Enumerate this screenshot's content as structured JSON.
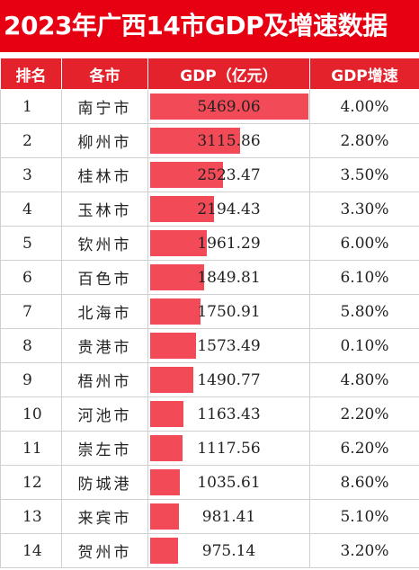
{
  "title": "2023年广西14市GDP及增速数据",
  "headers": {
    "rank": "排名",
    "city": "各市",
    "gdp": "GDP（亿元）",
    "growth": "GDP增速"
  },
  "colors": {
    "accent": "#e60012",
    "bar": "#f24a57"
  },
  "chart_data": {
    "type": "table",
    "title": "2023年广西14市GDP及增速数据",
    "columns": [
      "排名",
      "各市",
      "GDP（亿元）",
      "GDP增速"
    ],
    "rows": [
      {
        "rank": "1",
        "city": "南宁市",
        "gdp": "5469.06",
        "gdp_value": 5469.06,
        "growth": "4.00%"
      },
      {
        "rank": "2",
        "city": "柳州市",
        "gdp": "3115.86",
        "gdp_value": 3115.86,
        "growth": "2.80%"
      },
      {
        "rank": "3",
        "city": "桂林市",
        "gdp": "2523.47",
        "gdp_value": 2523.47,
        "growth": "3.50%"
      },
      {
        "rank": "4",
        "city": "玉林市",
        "gdp": "2194.43",
        "gdp_value": 2194.43,
        "growth": "3.30%"
      },
      {
        "rank": "5",
        "city": "钦州市",
        "gdp": "1961.29",
        "gdp_value": 1961.29,
        "growth": "6.00%"
      },
      {
        "rank": "6",
        "city": "百色市",
        "gdp": "1849.81",
        "gdp_value": 1849.81,
        "growth": "6.10%"
      },
      {
        "rank": "7",
        "city": "北海市",
        "gdp": "1750.91",
        "gdp_value": 1750.91,
        "growth": "5.80%"
      },
      {
        "rank": "8",
        "city": "贵港市",
        "gdp": "1573.49",
        "gdp_value": 1573.49,
        "growth": "0.10%"
      },
      {
        "rank": "9",
        "city": "梧州市",
        "gdp": "1490.77",
        "gdp_value": 1490.77,
        "growth": "4.80%"
      },
      {
        "rank": "10",
        "city": "河池市",
        "gdp": "1163.43",
        "gdp_value": 1163.43,
        "growth": "2.20%"
      },
      {
        "rank": "11",
        "city": "崇左市",
        "gdp": "1117.56",
        "gdp_value": 1117.56,
        "growth": "6.20%"
      },
      {
        "rank": "12",
        "city": "防城港",
        "gdp": "1035.61",
        "gdp_value": 1035.61,
        "growth": "8.60%"
      },
      {
        "rank": "13",
        "city": "来宾市",
        "gdp": "981.41",
        "gdp_value": 981.41,
        "growth": "5.10%"
      },
      {
        "rank": "14",
        "city": "贺州市",
        "gdp": "975.14",
        "gdp_value": 975.14,
        "growth": "3.20%"
      }
    ]
  }
}
